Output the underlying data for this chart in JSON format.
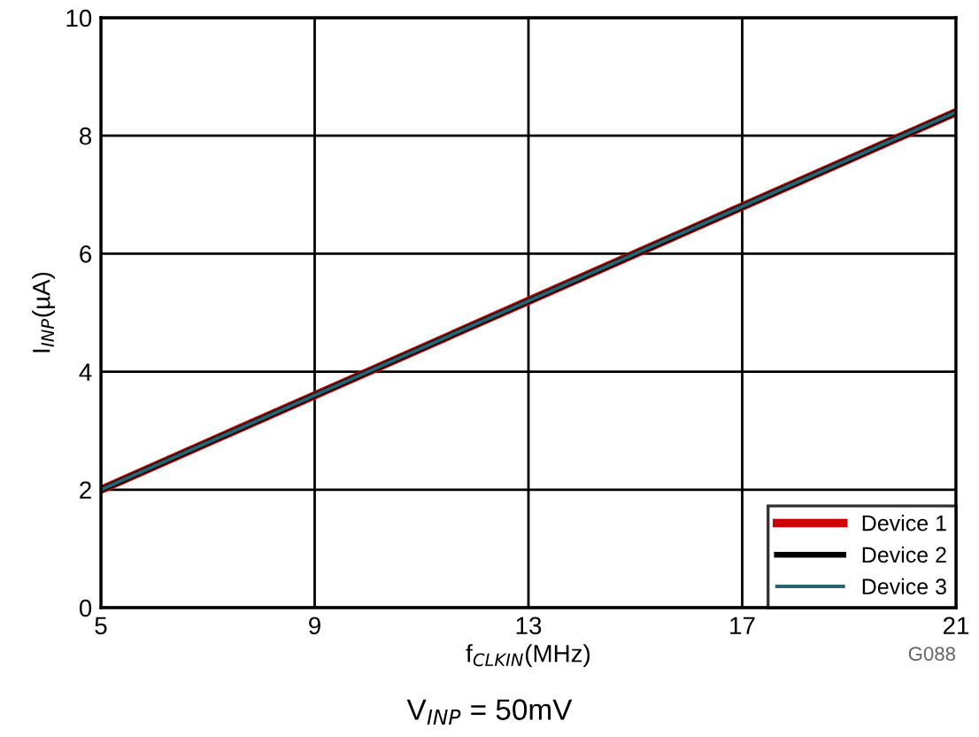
{
  "chart_data": {
    "type": "line",
    "xlabel": "f$_{CLKIN}$(MHz)",
    "ylabel": "I$_{INP}$(µA)",
    "x": [
      5,
      9,
      13,
      17,
      21
    ],
    "series": [
      {
        "name": "Device 1",
        "color": "#cc0000",
        "values": [
          2.0,
          3.6,
          5.2,
          6.8,
          8.4
        ]
      },
      {
        "name": "Device 2",
        "color": "#000000",
        "values": [
          2.0,
          3.6,
          5.2,
          6.8,
          8.4
        ]
      },
      {
        "name": "Device 3",
        "color": "#2a6270",
        "values": [
          2.0,
          3.6,
          5.2,
          6.8,
          8.4
        ]
      }
    ],
    "xlim": [
      5,
      21
    ],
    "xticks": [
      5,
      9,
      13,
      17,
      21
    ],
    "ylim": [
      0,
      10
    ],
    "yticks": [
      0,
      2,
      4,
      6,
      8,
      10
    ],
    "grid": true,
    "legend": "bottom right",
    "marker": "none",
    "line_style": "solid",
    "annotations": [
      "G088",
      "V$_{INP}$ = 50mV"
    ]
  }
}
